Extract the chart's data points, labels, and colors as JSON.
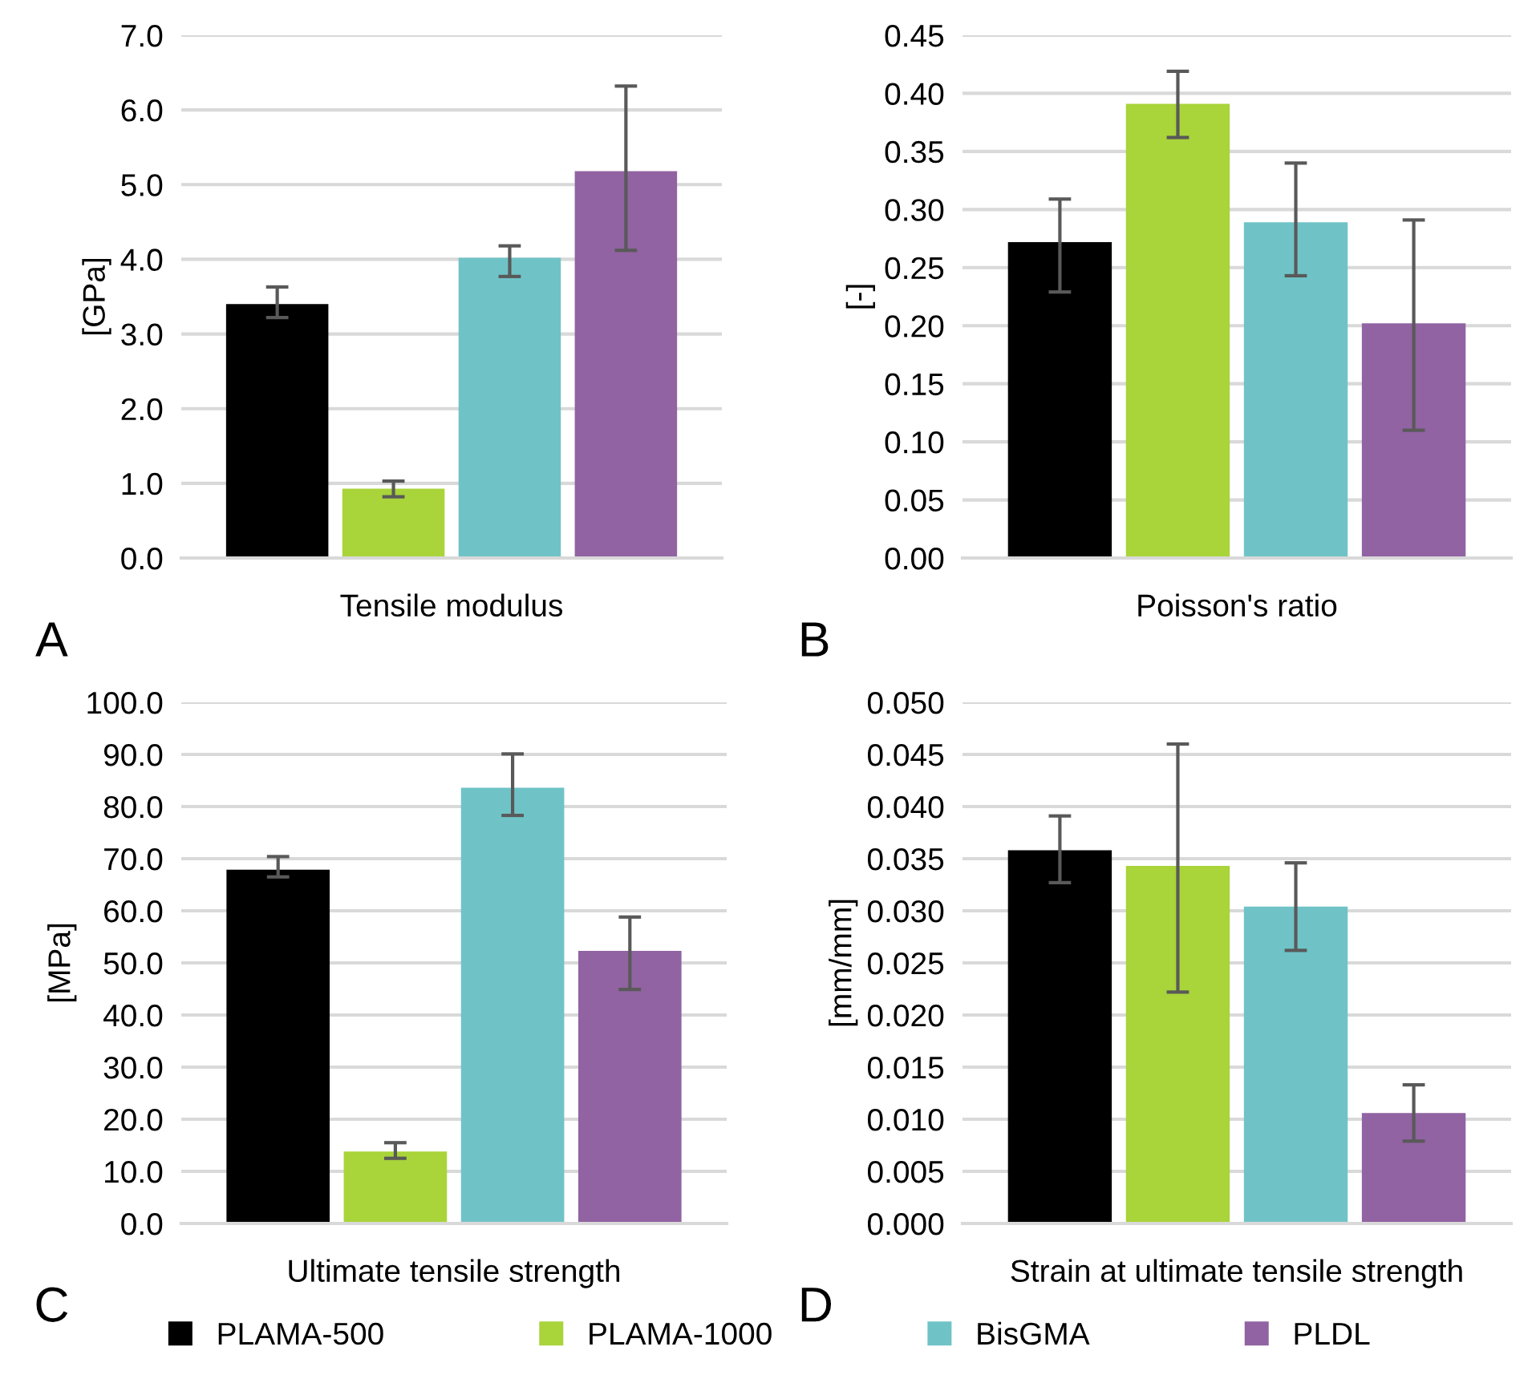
{
  "chart_data": [
    {
      "type": "bar",
      "categories": [
        null
      ],
      "xlabel": "Tensile modulus",
      "ylabel": "[GPa]",
      "annotations": [
        "A"
      ],
      "ylim": [
        0,
        7
      ],
      "yticks": [
        {
          "value": 0,
          "label": "0.0"
        },
        {
          "value": 1,
          "label": "1.0"
        },
        {
          "value": 2,
          "label": "2.0"
        },
        {
          "value": 3,
          "label": "3.0"
        },
        {
          "value": 4,
          "label": "4.0"
        },
        {
          "value": 5,
          "label": "5.0"
        },
        {
          "value": 6,
          "label": "6.0"
        },
        {
          "value": 7,
          "label": "7.0"
        }
      ],
      "grid": "y",
      "legend": false,
      "series": [
        {
          "color": "#000000",
          "values": [
            3.4
          ],
          "errors": [
            [
              3.22,
              3.63
            ]
          ]
        },
        {
          "color": "#a9d43a",
          "values": [
            0.93
          ],
          "errors": [
            [
              0.82,
              1.03
            ]
          ]
        },
        {
          "color": "#6fc3c7",
          "values": [
            4.02
          ],
          "errors": [
            [
              3.77,
              4.18
            ]
          ]
        },
        {
          "color": "#9163a2",
          "values": [
            5.18
          ],
          "errors": [
            [
              4.12,
              6.32
            ]
          ]
        }
      ]
    },
    {
      "type": "bar",
      "categories": [
        null
      ],
      "xlabel": "Poisson's ratio",
      "ylabel": "[-]",
      "annotations": [
        "B"
      ],
      "ylim": [
        0,
        0.45
      ],
      "yticks": [
        {
          "value": 0,
          "label": "0.00"
        },
        {
          "value": 0.05,
          "label": "0.05"
        },
        {
          "value": 0.1,
          "label": "0.10"
        },
        {
          "value": 0.15,
          "label": "0.15"
        },
        {
          "value": 0.2,
          "label": "0.20"
        },
        {
          "value": 0.25,
          "label": "0.25"
        },
        {
          "value": 0.3,
          "label": "0.30"
        },
        {
          "value": 0.35,
          "label": "0.35"
        },
        {
          "value": 0.4,
          "label": "0.40"
        },
        {
          "value": 0.45,
          "label": "0.45"
        }
      ],
      "grid": "y",
      "legend": false,
      "series": [
        {
          "color": "#000000",
          "values": [
            0.272
          ],
          "errors": [
            [
              0.229,
              0.309
            ]
          ]
        },
        {
          "color": "#a9d43a",
          "values": [
            0.391
          ],
          "errors": [
            [
              0.362,
              0.419
            ]
          ]
        },
        {
          "color": "#6fc3c7",
          "values": [
            0.289
          ],
          "errors": [
            [
              0.243,
              0.34
            ]
          ]
        },
        {
          "color": "#9163a2",
          "values": [
            0.202
          ],
          "errors": [
            [
              0.11,
              0.291
            ]
          ]
        }
      ]
    },
    {
      "type": "bar",
      "categories": [
        null
      ],
      "xlabel": "Ultimate tensile strength",
      "ylabel": "[MPa]",
      "annotations": [
        "C"
      ],
      "ylim": [
        0,
        100
      ],
      "yticks": [
        {
          "value": 0,
          "label": "0.0"
        },
        {
          "value": 10,
          "label": "10.0"
        },
        {
          "value": 20,
          "label": "20.0"
        },
        {
          "value": 30,
          "label": "30.0"
        },
        {
          "value": 40,
          "label": "40.0"
        },
        {
          "value": 50,
          "label": "50.0"
        },
        {
          "value": 60,
          "label": "60.0"
        },
        {
          "value": 70,
          "label": "70.0"
        },
        {
          "value": 80,
          "label": "80.0"
        },
        {
          "value": 90,
          "label": "90.0"
        },
        {
          "value": 100,
          "label": "100.0"
        }
      ],
      "grid": "y",
      "legend": false,
      "series": [
        {
          "color": "#000000",
          "values": [
            67.9
          ],
          "errors": [
            [
              66.5,
              70.4
            ]
          ]
        },
        {
          "color": "#a9d43a",
          "values": [
            13.8
          ],
          "errors": [
            [
              12.5,
              15.5
            ]
          ]
        },
        {
          "color": "#6fc3c7",
          "values": [
            83.6
          ],
          "errors": [
            [
              78.3,
              90.1
            ]
          ]
        },
        {
          "color": "#9163a2",
          "values": [
            52.3
          ],
          "errors": [
            [
              44.9,
              58.8
            ]
          ]
        }
      ]
    },
    {
      "type": "bar",
      "categories": [
        null
      ],
      "xlabel": "Strain at ultimate tensile strength",
      "ylabel": "[mm/mm]",
      "annotations": [
        "D"
      ],
      "ylim": [
        0,
        0.05
      ],
      "yticks": [
        {
          "value": 0,
          "label": "0.000"
        },
        {
          "value": 0.005,
          "label": "0.005"
        },
        {
          "value": 0.01,
          "label": "0.010"
        },
        {
          "value": 0.015,
          "label": "0.015"
        },
        {
          "value": 0.02,
          "label": "0.020"
        },
        {
          "value": 0.025,
          "label": "0.025"
        },
        {
          "value": 0.03,
          "label": "0.030"
        },
        {
          "value": 0.035,
          "label": "0.035"
        },
        {
          "value": 0.04,
          "label": "0.040"
        },
        {
          "value": 0.045,
          "label": "0.045"
        },
        {
          "value": 0.05,
          "label": "0.050"
        }
      ],
      "grid": "y",
      "legend": "bottom",
      "series": [
        {
          "name": "PLAMA-500",
          "color": "#000000",
          "values": [
            0.0358
          ],
          "errors": [
            [
              0.0327,
              0.0391
            ]
          ]
        },
        {
          "name": "PLAMA-1000",
          "color": "#a9d43a",
          "values": [
            0.0343
          ],
          "errors": [
            [
              0.0222,
              0.046
            ]
          ]
        },
        {
          "name": "BisGMA",
          "color": "#6fc3c7",
          "values": [
            0.0304
          ],
          "errors": [
            [
              0.0262,
              0.0346
            ]
          ]
        },
        {
          "name": "PLDL",
          "color": "#9163a2",
          "values": [
            0.0106
          ],
          "errors": [
            [
              0.0079,
              0.0133
            ]
          ]
        }
      ]
    }
  ]
}
